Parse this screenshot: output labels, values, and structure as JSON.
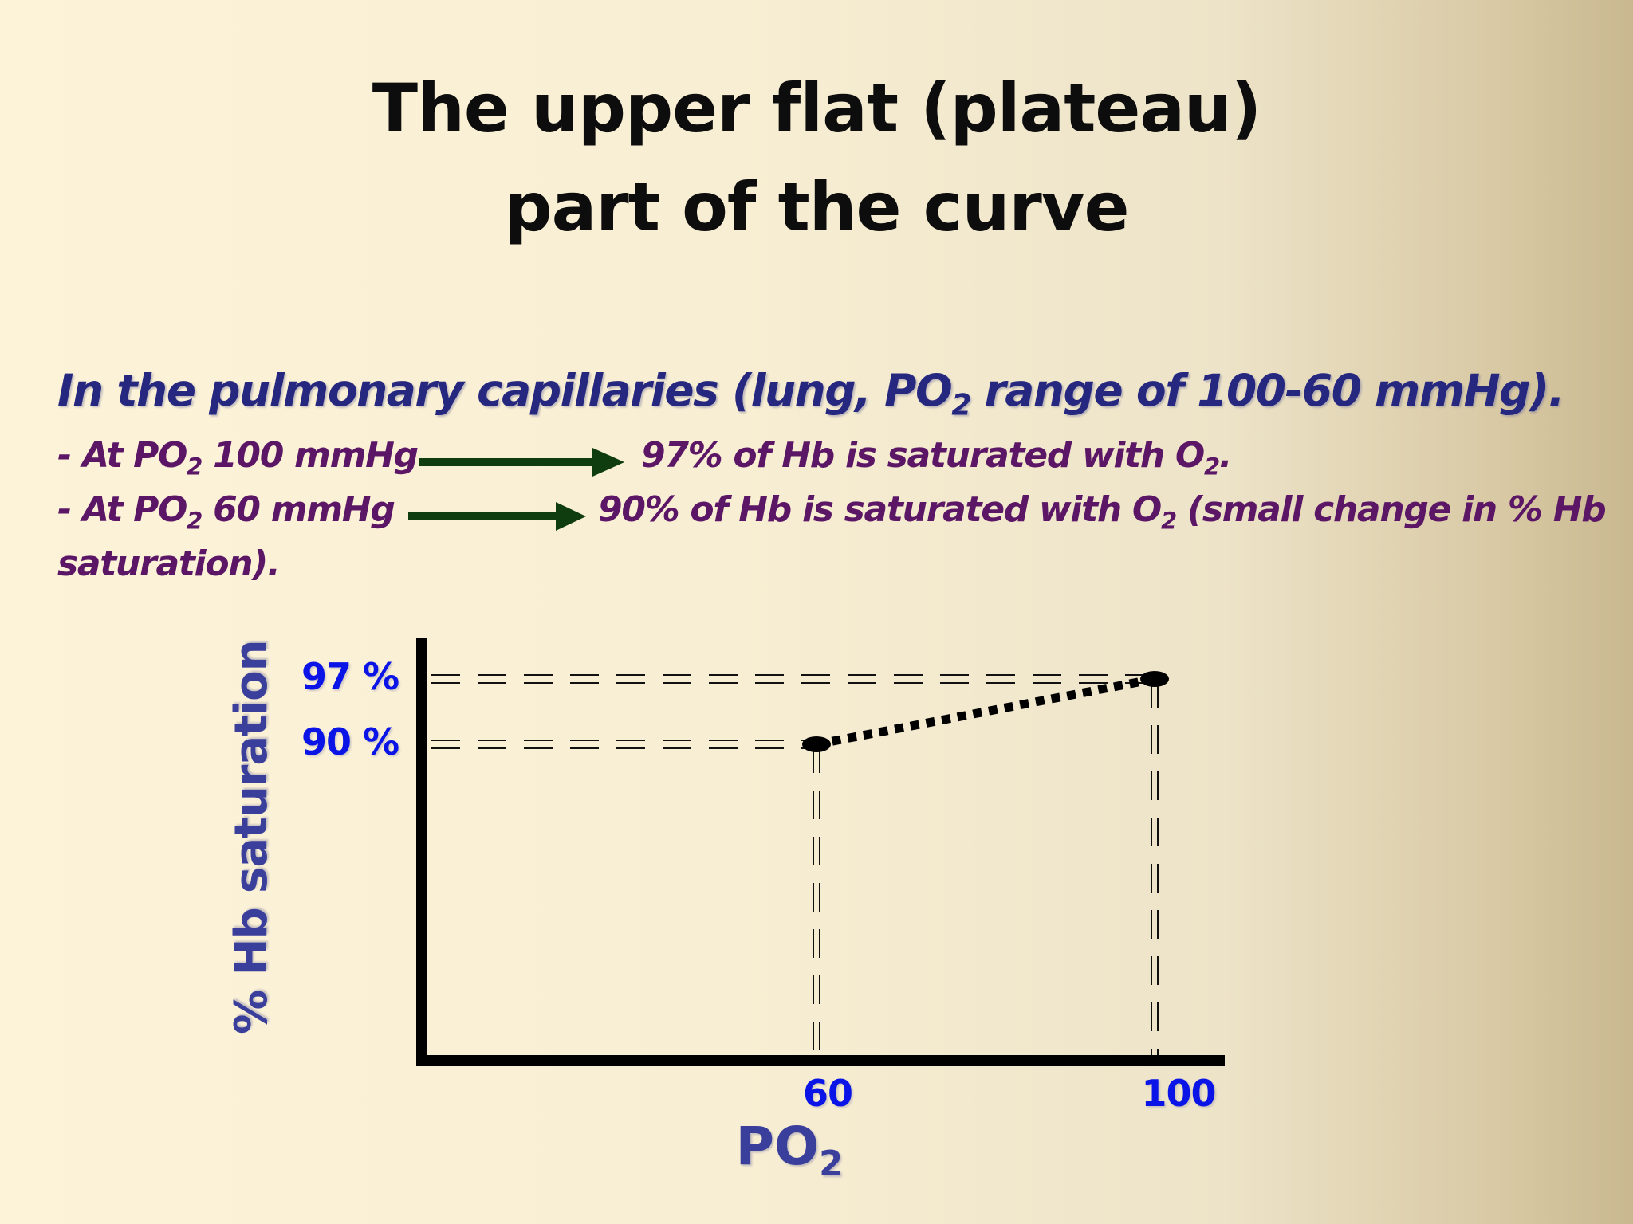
{
  "slide": {
    "title_line1": "The upper flat (plateau)",
    "title_line2": "part of the curve"
  },
  "text": {
    "lead_a": "In the pulmonary capillaries (lung, PO",
    "lead_sub": "2",
    "lead_b": " range of 100-60 mmHg).",
    "row1_a": "- At PO",
    "row1_sub": "2",
    "row1_b": " 100 mmHg",
    "row1_c": "97% of Hb is saturated with O",
    "row1_csub": "2",
    "row1_d": ".",
    "row2_a": "- At PO",
    "row2_sub": "2",
    "row2_b": " 60 mmHg",
    "row2_c": "90% of Hb is saturated with O",
    "row2_csub": "2",
    "row2_d": " (small change in % Hb",
    "row3": "saturation).",
    "arrow_color": "#0f3d0f"
  },
  "chart_data": {
    "type": "line",
    "ylabel": "% Hb saturation",
    "xlabel": "PO",
    "xlabel_sub": "2",
    "x_ticks": [
      "60",
      "100"
    ],
    "y_ticks": [
      "90 %",
      "97 %"
    ],
    "series": [
      {
        "points": [
          {
            "x": 60,
            "y": 90
          },
          {
            "x": 100,
            "y": 97
          }
        ],
        "style": "dotted"
      }
    ],
    "reference_lines": "dashed guide lines from each point to both axes",
    "colors": {
      "axis": "#000000",
      "tick_labels": "#0a14e6",
      "axis_titles": "#3b3f9c"
    }
  }
}
